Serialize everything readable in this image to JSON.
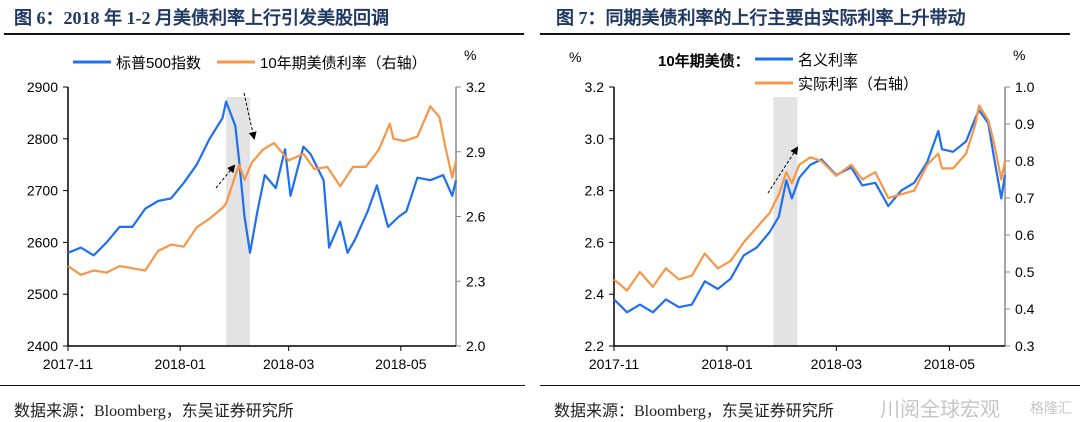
{
  "panels": [
    {
      "title": "图 6：2018 年 1-2 月美债利率上行引发美股回调",
      "source": "数据来源：Bloomberg，东吴证券研究所"
    },
    {
      "title": "图 7：同期美债利率的上行主要由实际利率上升带动",
      "source": "数据来源：Bloomberg，东吴证券研究所"
    }
  ],
  "watermark": {
    "text1": "川阅全球宏观",
    "text2": "格隆汇"
  },
  "colors": {
    "blue": "#1f6ff2",
    "orange": "#f79646",
    "shade": "#e3e3e3"
  },
  "chart_data": [
    {
      "type": "line",
      "x_ticks": [
        "2017-11",
        "2018-01",
        "2018-03",
        "2018-05"
      ],
      "y_left": {
        "unit": "",
        "ticks": [
          "2900",
          "2800",
          "2700",
          "2600",
          "2500",
          "2400"
        ],
        "range": [
          2400,
          2900
        ]
      },
      "y_right": {
        "unit": "%",
        "ticks": [
          "3.2",
          "2.9",
          "2.6",
          "2.3",
          "2.0"
        ],
        "range": [
          2.0,
          3.2
        ]
      },
      "shaded_period": [
        "2018-01-26",
        "2018-02-08"
      ],
      "series": [
        {
          "name": "标普500指数",
          "axis": "left",
          "color": "#1f6ff2",
          "points": [
            [
              "2017-11-01",
              2580
            ],
            [
              "2017-11-08",
              2590
            ],
            [
              "2017-11-15",
              2575
            ],
            [
              "2017-11-22",
              2600
            ],
            [
              "2017-11-29",
              2630
            ],
            [
              "2017-12-06",
              2630
            ],
            [
              "2017-12-13",
              2665
            ],
            [
              "2017-12-20",
              2680
            ],
            [
              "2017-12-27",
              2685
            ],
            [
              "2018-01-03",
              2715
            ],
            [
              "2018-01-10",
              2750
            ],
            [
              "2018-01-17",
              2800
            ],
            [
              "2018-01-24",
              2840
            ],
            [
              "2018-01-26",
              2872
            ],
            [
              "2018-01-31",
              2825
            ],
            [
              "2018-02-02",
              2760
            ],
            [
              "2018-02-05",
              2650
            ],
            [
              "2018-02-08",
              2580
            ],
            [
              "2018-02-12",
              2660
            ],
            [
              "2018-02-16",
              2730
            ],
            [
              "2018-02-22",
              2705
            ],
            [
              "2018-02-27",
              2780
            ],
            [
              "2018-03-02",
              2690
            ],
            [
              "2018-03-09",
              2785
            ],
            [
              "2018-03-13",
              2770
            ],
            [
              "2018-03-20",
              2720
            ],
            [
              "2018-03-23",
              2590
            ],
            [
              "2018-03-29",
              2640
            ],
            [
              "2018-04-02",
              2580
            ],
            [
              "2018-04-06",
              2605
            ],
            [
              "2018-04-13",
              2660
            ],
            [
              "2018-04-18",
              2710
            ],
            [
              "2018-04-24",
              2630
            ],
            [
              "2018-04-30",
              2650
            ],
            [
              "2018-05-04",
              2660
            ],
            [
              "2018-05-10",
              2725
            ],
            [
              "2018-05-17",
              2720
            ],
            [
              "2018-05-24",
              2730
            ],
            [
              "2018-05-29",
              2690
            ],
            [
              "2018-05-31",
              2720
            ]
          ]
        },
        {
          "name": "10年期美债利率（右轴）",
          "axis": "right",
          "color": "#f79646",
          "points": [
            [
              "2017-11-01",
              2.37
            ],
            [
              "2017-11-08",
              2.33
            ],
            [
              "2017-11-15",
              2.35
            ],
            [
              "2017-11-22",
              2.34
            ],
            [
              "2017-11-29",
              2.37
            ],
            [
              "2017-12-06",
              2.36
            ],
            [
              "2017-12-13",
              2.35
            ],
            [
              "2017-12-20",
              2.44
            ],
            [
              "2017-12-27",
              2.47
            ],
            [
              "2018-01-03",
              2.46
            ],
            [
              "2018-01-10",
              2.55
            ],
            [
              "2018-01-17",
              2.59
            ],
            [
              "2018-01-24",
              2.64
            ],
            [
              "2018-01-26",
              2.66
            ],
            [
              "2018-02-02",
              2.84
            ],
            [
              "2018-02-05",
              2.77
            ],
            [
              "2018-02-09",
              2.85
            ],
            [
              "2018-02-15",
              2.91
            ],
            [
              "2018-02-21",
              2.94
            ],
            [
              "2018-03-01",
              2.86
            ],
            [
              "2018-03-09",
              2.89
            ],
            [
              "2018-03-15",
              2.82
            ],
            [
              "2018-03-22",
              2.83
            ],
            [
              "2018-03-29",
              2.74
            ],
            [
              "2018-04-05",
              2.83
            ],
            [
              "2018-04-12",
              2.83
            ],
            [
              "2018-04-19",
              2.91
            ],
            [
              "2018-04-25",
              3.03
            ],
            [
              "2018-04-27",
              2.96
            ],
            [
              "2018-05-03",
              2.95
            ],
            [
              "2018-05-10",
              2.97
            ],
            [
              "2018-05-15",
              3.07
            ],
            [
              "2018-05-17",
              3.11
            ],
            [
              "2018-05-22",
              3.06
            ],
            [
              "2018-05-25",
              2.93
            ],
            [
              "2018-05-29",
              2.78
            ],
            [
              "2018-05-31",
              2.86
            ]
          ]
        }
      ]
    },
    {
      "type": "line",
      "legend_title": "10年期美债：",
      "x_ticks": [
        "2017-11",
        "2018-01",
        "2018-03",
        "2018-05"
      ],
      "y_left": {
        "unit": "%",
        "ticks": [
          "3.2",
          "3.0",
          "2.8",
          "2.6",
          "2.4",
          "2.2"
        ],
        "range": [
          2.2,
          3.2
        ]
      },
      "y_right": {
        "unit": "%",
        "ticks": [
          "1.0",
          "0.9",
          "0.8",
          "0.7",
          "0.6",
          "0.5",
          "0.4",
          "0.3"
        ],
        "range": [
          0.3,
          1.0
        ]
      },
      "shaded_period": [
        "2018-01-26",
        "2018-02-08"
      ],
      "series": [
        {
          "name": "名义利率",
          "axis": "left",
          "color": "#1f6ff2",
          "points": [
            [
              "2017-11-01",
              2.38
            ],
            [
              "2017-11-08",
              2.33
            ],
            [
              "2017-11-15",
              2.36
            ],
            [
              "2017-11-22",
              2.33
            ],
            [
              "2017-11-29",
              2.38
            ],
            [
              "2017-12-06",
              2.35
            ],
            [
              "2017-12-13",
              2.36
            ],
            [
              "2017-12-20",
              2.45
            ],
            [
              "2017-12-27",
              2.42
            ],
            [
              "2018-01-03",
              2.46
            ],
            [
              "2018-01-10",
              2.55
            ],
            [
              "2018-01-17",
              2.58
            ],
            [
              "2018-01-24",
              2.64
            ],
            [
              "2018-01-29",
              2.7
            ],
            [
              "2018-02-02",
              2.84
            ],
            [
              "2018-02-05",
              2.77
            ],
            [
              "2018-02-09",
              2.85
            ],
            [
              "2018-02-15",
              2.9
            ],
            [
              "2018-02-21",
              2.92
            ],
            [
              "2018-03-01",
              2.86
            ],
            [
              "2018-03-09",
              2.89
            ],
            [
              "2018-03-15",
              2.82
            ],
            [
              "2018-03-22",
              2.83
            ],
            [
              "2018-03-29",
              2.74
            ],
            [
              "2018-04-05",
              2.8
            ],
            [
              "2018-04-12",
              2.83
            ],
            [
              "2018-04-19",
              2.91
            ],
            [
              "2018-04-25",
              3.03
            ],
            [
              "2018-04-27",
              2.96
            ],
            [
              "2018-05-03",
              2.95
            ],
            [
              "2018-05-10",
              2.99
            ],
            [
              "2018-05-15",
              3.08
            ],
            [
              "2018-05-17",
              3.11
            ],
            [
              "2018-05-22",
              3.06
            ],
            [
              "2018-05-25",
              2.93
            ],
            [
              "2018-05-29",
              2.77
            ],
            [
              "2018-05-31",
              2.86
            ]
          ]
        },
        {
          "name": "实际利率（右轴）",
          "axis": "right",
          "color": "#f79646",
          "points": [
            [
              "2017-11-01",
              0.48
            ],
            [
              "2017-11-08",
              0.45
            ],
            [
              "2017-11-15",
              0.5
            ],
            [
              "2017-11-22",
              0.46
            ],
            [
              "2017-11-29",
              0.51
            ],
            [
              "2017-12-06",
              0.48
            ],
            [
              "2017-12-13",
              0.49
            ],
            [
              "2017-12-20",
              0.55
            ],
            [
              "2017-12-27",
              0.51
            ],
            [
              "2018-01-03",
              0.53
            ],
            [
              "2018-01-10",
              0.58
            ],
            [
              "2018-01-17",
              0.62
            ],
            [
              "2018-01-24",
              0.66
            ],
            [
              "2018-01-29",
              0.71
            ],
            [
              "2018-02-02",
              0.77
            ],
            [
              "2018-02-05",
              0.74
            ],
            [
              "2018-02-09",
              0.79
            ],
            [
              "2018-02-15",
              0.81
            ],
            [
              "2018-02-21",
              0.8
            ],
            [
              "2018-03-01",
              0.76
            ],
            [
              "2018-03-09",
              0.79
            ],
            [
              "2018-03-15",
              0.75
            ],
            [
              "2018-03-22",
              0.77
            ],
            [
              "2018-03-29",
              0.7
            ],
            [
              "2018-04-05",
              0.71
            ],
            [
              "2018-04-12",
              0.72
            ],
            [
              "2018-04-19",
              0.79
            ],
            [
              "2018-04-25",
              0.82
            ],
            [
              "2018-04-27",
              0.78
            ],
            [
              "2018-05-03",
              0.78
            ],
            [
              "2018-05-10",
              0.82
            ],
            [
              "2018-05-15",
              0.9
            ],
            [
              "2018-05-17",
              0.95
            ],
            [
              "2018-05-22",
              0.91
            ],
            [
              "2018-05-25",
              0.85
            ],
            [
              "2018-05-29",
              0.75
            ],
            [
              "2018-05-31",
              0.8
            ]
          ]
        }
      ]
    }
  ]
}
